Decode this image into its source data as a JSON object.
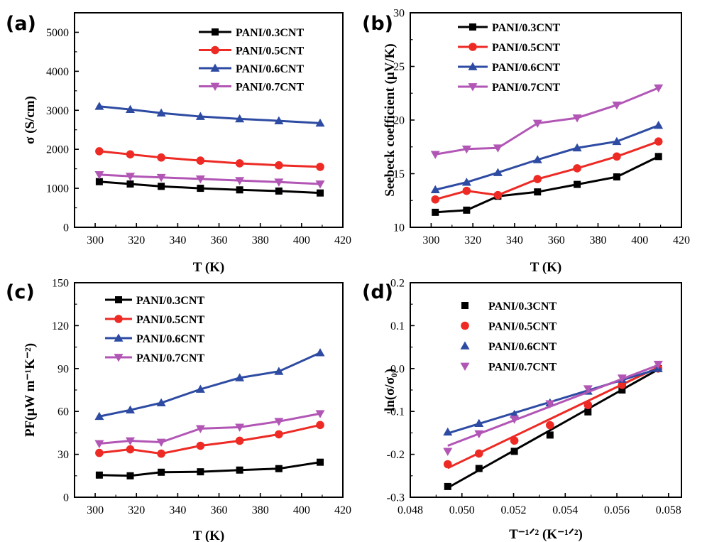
{
  "colors": {
    "PANI/0.3CNT": "#000000",
    "PANI/0.5CNT": "#ed2a24",
    "PANI/0.6CNT": "#2e4ba3",
    "PANI/0.7CNT": "#b256b6"
  },
  "chart_data": [
    {
      "panel": "(a)",
      "type": "line",
      "xlabel": "T (K)",
      "ylabel": "σ (S/cm)",
      "xlim": [
        290,
        420
      ],
      "ylim": [
        0,
        5500
      ],
      "xticks": [
        300,
        320,
        340,
        360,
        380,
        400,
        420
      ],
      "yticks": [
        0,
        1000,
        2000,
        3000,
        4000,
        5000
      ],
      "legend_position": "top-right",
      "series": [
        {
          "name": "PANI/0.3CNT",
          "marker": "square",
          "x": [
            302,
            317,
            332,
            351,
            370,
            389,
            409
          ],
          "y": [
            1170,
            1110,
            1050,
            1000,
            960,
            930,
            880
          ]
        },
        {
          "name": "PANI/0.5CNT",
          "marker": "circle",
          "x": [
            302,
            317,
            332,
            351,
            370,
            389,
            409
          ],
          "y": [
            1950,
            1870,
            1790,
            1710,
            1640,
            1590,
            1550
          ]
        },
        {
          "name": "PANI/0.6CNT",
          "marker": "triangle-up",
          "x": [
            302,
            317,
            332,
            351,
            370,
            389,
            409
          ],
          "y": [
            3100,
            3020,
            2930,
            2840,
            2780,
            2730,
            2670
          ]
        },
        {
          "name": "PANI/0.7CNT",
          "marker": "triangle-down",
          "x": [
            302,
            317,
            332,
            351,
            370,
            389,
            409
          ],
          "y": [
            1350,
            1310,
            1280,
            1240,
            1200,
            1160,
            1110
          ]
        }
      ]
    },
    {
      "panel": "(b)",
      "type": "line",
      "xlabel": "T (K)",
      "ylabel": "Seebeck coefficient (μV/K)",
      "xlim": [
        290,
        420
      ],
      "ylim": [
        10,
        30
      ],
      "xticks": [
        300,
        320,
        340,
        360,
        380,
        400,
        420
      ],
      "yticks": [
        10,
        15,
        20,
        25,
        30
      ],
      "legend_position": "top-left",
      "series": [
        {
          "name": "PANI/0.3CNT",
          "marker": "square",
          "x": [
            302,
            317,
            332,
            351,
            370,
            389,
            409
          ],
          "y": [
            11.4,
            11.6,
            12.9,
            13.3,
            14.0,
            14.7,
            16.6
          ]
        },
        {
          "name": "PANI/0.5CNT",
          "marker": "circle",
          "x": [
            302,
            317,
            332,
            351,
            370,
            389,
            409
          ],
          "y": [
            12.6,
            13.4,
            13.0,
            14.5,
            15.5,
            16.6,
            18.0
          ]
        },
        {
          "name": "PANI/0.6CNT",
          "marker": "triangle-up",
          "x": [
            302,
            317,
            332,
            351,
            370,
            389,
            409
          ],
          "y": [
            13.5,
            14.2,
            15.1,
            16.3,
            17.4,
            18.0,
            19.5
          ]
        },
        {
          "name": "PANI/0.7CNT",
          "marker": "triangle-down",
          "x": [
            302,
            317,
            332,
            351,
            370,
            389,
            409
          ],
          "y": [
            16.8,
            17.3,
            17.4,
            19.7,
            20.2,
            21.4,
            23.0
          ]
        }
      ]
    },
    {
      "panel": "(c)",
      "type": "line",
      "xlabel": "T (K)",
      "ylabel": "PF(μW m⁻¹K⁻²)",
      "xlim": [
        290,
        420
      ],
      "ylim": [
        0,
        150
      ],
      "xticks": [
        300,
        320,
        340,
        360,
        380,
        400,
        420
      ],
      "yticks": [
        0,
        30,
        60,
        90,
        120,
        150
      ],
      "legend_position": "top-left",
      "series": [
        {
          "name": "PANI/0.3CNT",
          "marker": "square",
          "x": [
            302,
            317,
            332,
            351,
            370,
            389,
            409
          ],
          "y": [
            15.5,
            15.0,
            17.5,
            17.8,
            19.0,
            20.0,
            24.5
          ]
        },
        {
          "name": "PANI/0.5CNT",
          "marker": "circle",
          "x": [
            302,
            317,
            332,
            351,
            370,
            389,
            409
          ],
          "y": [
            31.0,
            33.5,
            30.5,
            36.0,
            39.5,
            44.0,
            50.5
          ]
        },
        {
          "name": "PANI/0.6CNT",
          "marker": "triangle-up",
          "x": [
            302,
            317,
            332,
            351,
            370,
            389,
            409
          ],
          "y": [
            56.5,
            61.0,
            66.0,
            75.5,
            83.5,
            88.0,
            101.0
          ]
        },
        {
          "name": "PANI/0.7CNT",
          "marker": "triangle-down",
          "x": [
            302,
            317,
            332,
            351,
            370,
            389,
            409
          ],
          "y": [
            37.5,
            39.5,
            38.5,
            48.0,
            49.0,
            53.0,
            58.5
          ]
        }
      ]
    },
    {
      "panel": "(d)",
      "type": "scatter",
      "xlabel": "T⁻¹ᐟ² (K⁻¹ᐟ²)",
      "ylabel": "ln(σ/σ₀)",
      "xlim": [
        0.048,
        0.0585
      ],
      "ylim": [
        -0.3,
        0.2
      ],
      "xticks": [
        0.048,
        0.05,
        0.052,
        0.054,
        0.056,
        0.058
      ],
      "yticks": [
        -0.3,
        -0.2,
        -0.1,
        0.0,
        0.1,
        0.2
      ],
      "legend_position": "top-left",
      "series": [
        {
          "name": "PANI/0.3CNT",
          "marker": "square",
          "x": [
            0.04945,
            0.05066,
            0.05203,
            0.05341,
            0.05488,
            0.0562,
            0.0576
          ],
          "y": [
            -0.275,
            -0.233,
            -0.193,
            -0.155,
            -0.101,
            -0.05,
            0.0
          ],
          "fit": {
            "x": [
              0.04945,
              0.0576
            ],
            "y": [
              -0.278,
              -0.002
            ]
          }
        },
        {
          "name": "PANI/0.5CNT",
          "marker": "circle",
          "x": [
            0.04945,
            0.05066,
            0.05203,
            0.05341,
            0.05488,
            0.0562,
            0.0576
          ],
          "y": [
            -0.223,
            -0.198,
            -0.168,
            -0.132,
            -0.085,
            -0.038,
            0.0
          ],
          "fit": {
            "x": [
              0.04945,
              0.0576
            ],
            "y": [
              -0.232,
              0.003
            ]
          }
        },
        {
          "name": "PANI/0.6CNT",
          "marker": "triangle-up",
          "x": [
            0.04945,
            0.05066,
            0.05203,
            0.05341,
            0.05488,
            0.0562,
            0.0576
          ],
          "y": [
            -0.148,
            -0.128,
            -0.107,
            -0.08,
            -0.053,
            -0.025,
            0.0
          ],
          "fit": {
            "x": [
              0.04945,
              0.0576
            ],
            "y": [
              -0.151,
              -0.001
            ]
          }
        },
        {
          "name": "PANI/0.7CNT",
          "marker": "triangle-down",
          "x": [
            0.04945,
            0.05066,
            0.05203,
            0.05341,
            0.05488,
            0.0562,
            0.0576
          ],
          "y": [
            -0.193,
            -0.152,
            -0.118,
            -0.082,
            -0.047,
            -0.022,
            0.01
          ],
          "fit": {
            "x": [
              0.04945,
              0.0576
            ],
            "y": [
              -0.18,
              0.008
            ]
          }
        }
      ]
    }
  ]
}
